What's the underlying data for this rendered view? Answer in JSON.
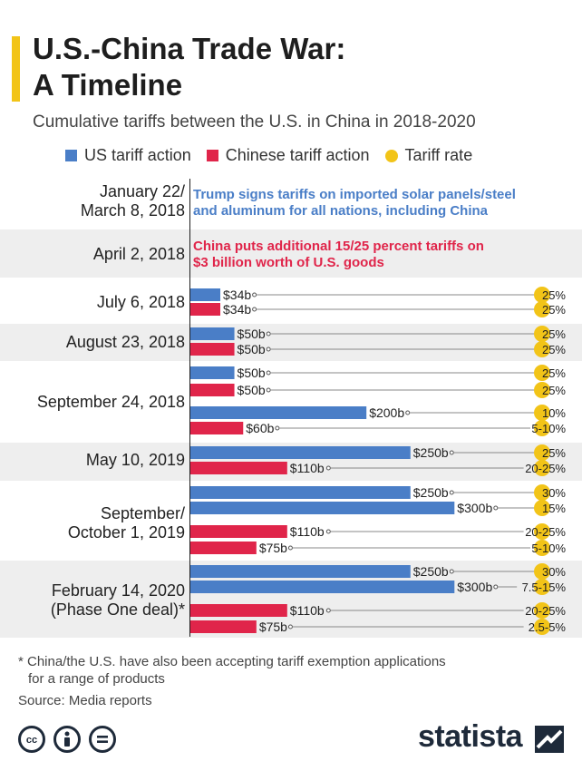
{
  "header": {
    "title_line1": "U.S.-China Trade War:",
    "title_line2": "A Timeline",
    "subtitle": "Cumulative tariffs between the U.S. in China in 2018-2020"
  },
  "legend": {
    "us": "US tariff action",
    "china": "Chinese tariff action",
    "rate": "Tariff rate"
  },
  "colors": {
    "us": "#4a7ec7",
    "china": "#e0254a",
    "rate": "#f2c418",
    "band": "#eeeeee"
  },
  "labels": {
    "jan": [
      "January 22/",
      "March 8, 2018"
    ],
    "apr": [
      "April 2, 2018"
    ],
    "jul": [
      "July 6, 2018"
    ],
    "aug": [
      "August 23, 2018"
    ],
    "sep18": [
      "September 24, 2018"
    ],
    "may19": [
      "May 10, 2019"
    ],
    "sep19": [
      "September/",
      "October 1, 2019"
    ],
    "feb20": [
      "February 14, 2020",
      "(Phase One deal)*"
    ]
  },
  "notes": {
    "jan": [
      "Trump signs tariffs on imported solar panels/steel",
      "and aluminum for all nations, including China"
    ],
    "apr": [
      "China puts additional 15/25 percent tariffs on",
      "$3 billion worth of U.S. goods"
    ]
  },
  "chart_data": {
    "type": "bar",
    "orientation": "horizontal",
    "unit": "billion USD",
    "series": [
      {
        "name": "US tariff action"
      },
      {
        "name": "Chinese tariff action"
      },
      {
        "name": "Tariff rate"
      }
    ],
    "bars": [
      {
        "group": "July 6, 2018",
        "actor": "us",
        "value": 34,
        "label": "$34b",
        "rate": "25%"
      },
      {
        "group": "July 6, 2018",
        "actor": "china",
        "value": 34,
        "label": "$34b",
        "rate": "25%"
      },
      {
        "group": "August 23, 2018",
        "actor": "us",
        "value": 50,
        "label": "$50b",
        "rate": "25%"
      },
      {
        "group": "August 23, 2018",
        "actor": "china",
        "value": 50,
        "label": "$50b",
        "rate": "25%"
      },
      {
        "group": "September 24, 2018",
        "actor": "us",
        "value": 50,
        "label": "$50b",
        "rate": "25%"
      },
      {
        "group": "September 24, 2018",
        "actor": "china",
        "value": 50,
        "label": "$50b",
        "rate": "25%"
      },
      {
        "group": "September 24, 2018",
        "actor": "us",
        "value": 200,
        "label": "$200b",
        "rate": "10%"
      },
      {
        "group": "September 24, 2018",
        "actor": "china",
        "value": 60,
        "label": "$60b",
        "rate": "5-10%"
      },
      {
        "group": "May 10, 2019",
        "actor": "us",
        "value": 250,
        "label": "$250b",
        "rate": "25%"
      },
      {
        "group": "May 10, 2019",
        "actor": "china",
        "value": 110,
        "label": "$110b",
        "rate": "20-25%"
      },
      {
        "group": "September/October 1, 2019",
        "actor": "us",
        "value": 250,
        "label": "$250b",
        "rate": "30%"
      },
      {
        "group": "September/October 1, 2019",
        "actor": "us",
        "value": 300,
        "label": "$300b",
        "rate": "15%"
      },
      {
        "group": "September/October 1, 2019",
        "actor": "china",
        "value": 110,
        "label": "$110b",
        "rate": "20-25%"
      },
      {
        "group": "September/October 1, 2019",
        "actor": "china",
        "value": 75,
        "label": "$75b",
        "rate": "5-10%"
      },
      {
        "group": "February 14, 2020",
        "actor": "us",
        "value": 250,
        "label": "$250b",
        "rate": "30%"
      },
      {
        "group": "February 14, 2020",
        "actor": "us",
        "value": 300,
        "label": "$300b",
        "rate": "7.5-15%"
      },
      {
        "group": "February 14, 2020",
        "actor": "china",
        "value": 110,
        "label": "$110b",
        "rate": "20-25%"
      },
      {
        "group": "February 14, 2020",
        "actor": "china",
        "value": 75,
        "label": "$75b",
        "rate": "2.5-5%"
      }
    ]
  },
  "footer": {
    "footnote_line1": "* China/the U.S. have also been accepting tariff exemption applications",
    "footnote_line2": "for a range of products",
    "source": "Source: Media reports",
    "brand": "statista"
  }
}
